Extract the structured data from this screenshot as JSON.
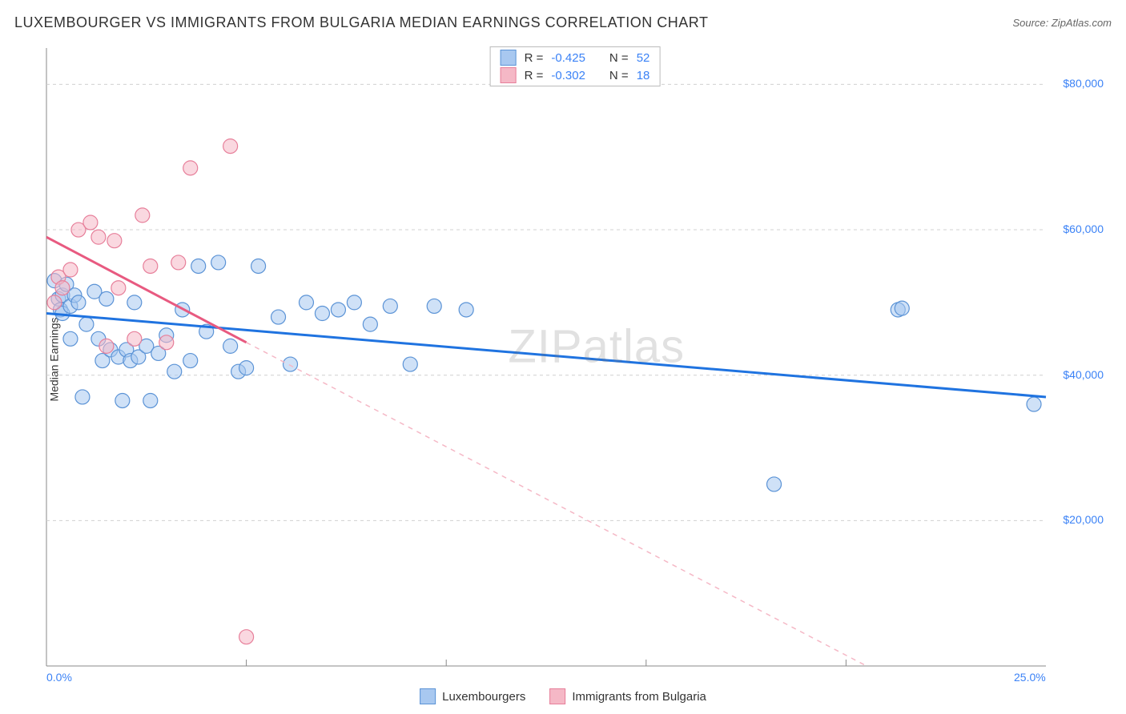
{
  "title": "LUXEMBOURGER VS IMMIGRANTS FROM BULGARIA MEDIAN EARNINGS CORRELATION CHART",
  "source": "Source: ZipAtlas.com",
  "watermark": "ZIPatlas",
  "ylabel": "Median Earnings",
  "chart": {
    "type": "scatter",
    "xlim": [
      0,
      25
    ],
    "ylim": [
      0,
      85000
    ],
    "x_ticks": [
      0,
      25
    ],
    "x_tick_labels": [
      "0.0%",
      "25.0%"
    ],
    "y_ticks": [
      20000,
      40000,
      60000,
      80000
    ],
    "y_tick_labels": [
      "$20,000",
      "$40,000",
      "$60,000",
      "$80,000"
    ],
    "y_tick_color": "#3b82f6",
    "x_tick_color": "#3b82f6",
    "grid_color": "#d0d0d0",
    "grid_dash": "4,4",
    "axis_color": "#888888",
    "background_color": "#ffffff",
    "vgrid_x": [
      5,
      10,
      15,
      20
    ],
    "series": [
      {
        "name": "Luxembourgers",
        "color_fill": "#a8c8f0",
        "color_stroke": "#5b93d6",
        "marker_radius": 9,
        "fill_opacity": 0.55,
        "R": -0.425,
        "N": 52,
        "trend": {
          "x1": 0,
          "y1": 48500,
          "x2": 25,
          "y2": 37000,
          "color": "#1f73e0",
          "width": 3,
          "dash": "none"
        },
        "trend_ext": null,
        "points": [
          [
            0.2,
            53000
          ],
          [
            0.3,
            50500
          ],
          [
            0.35,
            49000
          ],
          [
            0.4,
            51000
          ],
          [
            0.4,
            48500
          ],
          [
            0.5,
            52500
          ],
          [
            0.6,
            49500
          ],
          [
            0.6,
            45000
          ],
          [
            0.7,
            51000
          ],
          [
            0.8,
            50000
          ],
          [
            0.9,
            37000
          ],
          [
            1.0,
            47000
          ],
          [
            1.2,
            51500
          ],
          [
            1.3,
            45000
          ],
          [
            1.4,
            42000
          ],
          [
            1.5,
            50500
          ],
          [
            1.6,
            43500
          ],
          [
            1.8,
            42500
          ],
          [
            1.9,
            36500
          ],
          [
            2.0,
            43500
          ],
          [
            2.1,
            42000
          ],
          [
            2.2,
            50000
          ],
          [
            2.3,
            42500
          ],
          [
            2.5,
            44000
          ],
          [
            2.6,
            36500
          ],
          [
            2.8,
            43000
          ],
          [
            3.0,
            45500
          ],
          [
            3.2,
            40500
          ],
          [
            3.4,
            49000
          ],
          [
            3.6,
            42000
          ],
          [
            3.8,
            55000
          ],
          [
            4.0,
            46000
          ],
          [
            4.3,
            55500
          ],
          [
            4.6,
            44000
          ],
          [
            4.8,
            40500
          ],
          [
            5.0,
            41000
          ],
          [
            5.3,
            55000
          ],
          [
            5.8,
            48000
          ],
          [
            6.1,
            41500
          ],
          [
            6.5,
            50000
          ],
          [
            6.9,
            48500
          ],
          [
            7.3,
            49000
          ],
          [
            7.7,
            50000
          ],
          [
            8.1,
            47000
          ],
          [
            8.6,
            49500
          ],
          [
            9.1,
            41500
          ],
          [
            9.7,
            49500
          ],
          [
            10.5,
            49000
          ],
          [
            18.2,
            25000
          ],
          [
            21.3,
            49000
          ],
          [
            24.7,
            36000
          ],
          [
            21.4,
            49200
          ]
        ]
      },
      {
        "name": "Immigrants from Bulgaria",
        "color_fill": "#f5b8c6",
        "color_stroke": "#e77f9a",
        "marker_radius": 9,
        "fill_opacity": 0.55,
        "R": -0.302,
        "N": 18,
        "trend": {
          "x1": 0,
          "y1": 59000,
          "x2": 5,
          "y2": 44500,
          "color": "#e85a80",
          "width": 3,
          "dash": "none"
        },
        "trend_ext": {
          "x1": 5,
          "y1": 44500,
          "x2": 24,
          "y2": -10000,
          "color": "#f5b8c6",
          "width": 1.5,
          "dash": "6,6"
        },
        "points": [
          [
            0.2,
            50000
          ],
          [
            0.3,
            53500
          ],
          [
            0.4,
            52000
          ],
          [
            0.6,
            54500
          ],
          [
            0.8,
            60000
          ],
          [
            1.1,
            61000
          ],
          [
            1.3,
            59000
          ],
          [
            1.5,
            44000
          ],
          [
            1.7,
            58500
          ],
          [
            1.8,
            52000
          ],
          [
            2.2,
            45000
          ],
          [
            2.4,
            62000
          ],
          [
            2.6,
            55000
          ],
          [
            3.0,
            44500
          ],
          [
            3.3,
            55500
          ],
          [
            3.6,
            68500
          ],
          [
            4.6,
            71500
          ],
          [
            5.0,
            4000
          ]
        ]
      }
    ]
  },
  "top_legend": [
    {
      "swatch_fill": "#a8c8f0",
      "swatch_stroke": "#5b93d6",
      "r_label": "R =",
      "r_val": "-0.425",
      "n_label": "N =",
      "n_val": "52"
    },
    {
      "swatch_fill": "#f5b8c6",
      "swatch_stroke": "#e77f9a",
      "r_label": "R =",
      "r_val": "-0.302",
      "n_label": "N =",
      "n_val": "18"
    }
  ],
  "bottom_legend": [
    {
      "swatch_fill": "#a8c8f0",
      "swatch_stroke": "#5b93d6",
      "label": "Luxembourgers"
    },
    {
      "swatch_fill": "#f5b8c6",
      "swatch_stroke": "#e77f9a",
      "label": "Immigrants from Bulgaria"
    }
  ]
}
